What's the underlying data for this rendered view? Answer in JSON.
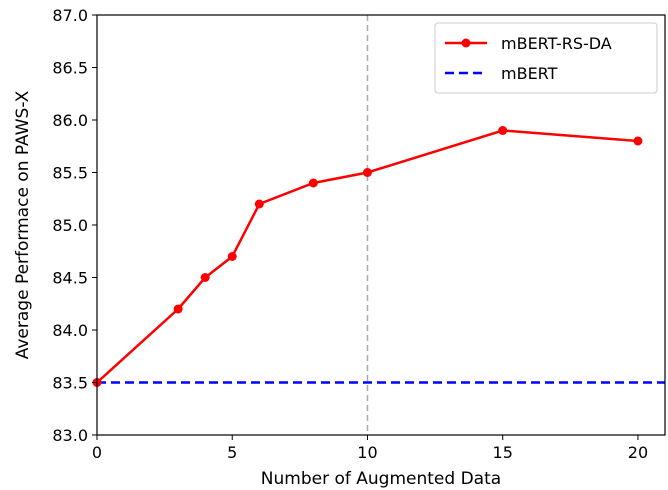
{
  "chart_data": {
    "type": "line",
    "xlabel": "Number of Augmented Data",
    "ylabel": "Average Performace on PAWS-X",
    "xlim": [
      0,
      21
    ],
    "ylim": [
      83.0,
      87.0
    ],
    "x_ticks": [
      "0",
      "5",
      "10",
      "15",
      "20"
    ],
    "y_ticks": [
      "83.0",
      "83.5",
      "84.0",
      "84.5",
      "85.0",
      "85.5",
      "86.0",
      "86.5",
      "87.0"
    ],
    "grid": false,
    "legend_position": "top-right",
    "series": [
      {
        "name": "mBERT-RS-DA",
        "style": "solid line with circle markers",
        "color": "#ff0000",
        "x": [
          0,
          3,
          4,
          5,
          6,
          8,
          10,
          15,
          20
        ],
        "y": [
          83.5,
          84.2,
          84.5,
          84.7,
          85.2,
          85.4,
          85.5,
          85.9,
          85.8
        ]
      },
      {
        "name": "mBERT",
        "style": "dashed horizontal line",
        "color": "#0000ff",
        "y": 83.5
      }
    ],
    "reference_lines": [
      {
        "orientation": "vertical",
        "x": 10,
        "color": "#aaaaaa",
        "style": "dashed"
      }
    ]
  }
}
